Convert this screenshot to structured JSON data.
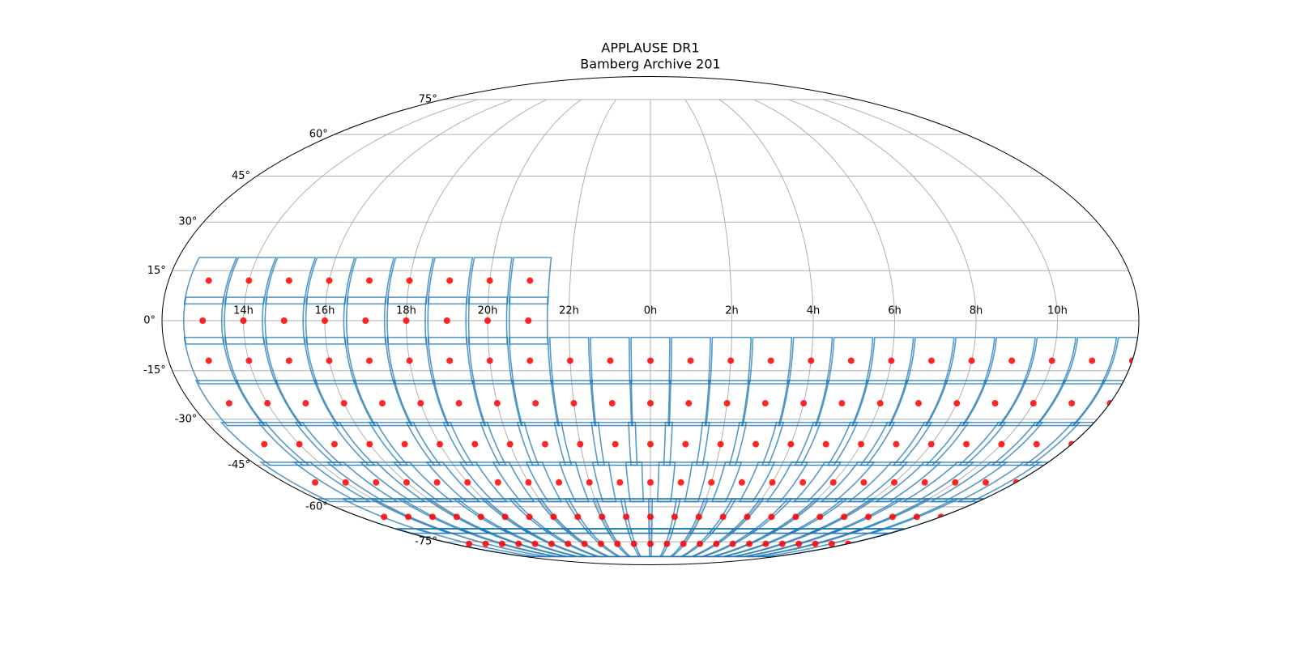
{
  "chart_data": {
    "type": "mollweide",
    "title": "APPLAUSE DR1",
    "subtitle": "Bamberg Archive 201",
    "grid": true,
    "footprint_color": "#1f77b4",
    "center_color": "#ff0000",
    "plate_size": 14,
    "xticks": [
      {
        "value": 14,
        "label": "14h"
      },
      {
        "value": 16,
        "label": "16h"
      },
      {
        "value": 18,
        "label": "18h"
      },
      {
        "value": 20,
        "label": "20h"
      },
      {
        "value": 22,
        "label": "22h"
      },
      {
        "value": 0,
        "label": "0h"
      },
      {
        "value": 2,
        "label": "2h"
      },
      {
        "value": 4,
        "label": "4h"
      },
      {
        "value": 6,
        "label": "6h"
      },
      {
        "value": 8,
        "label": "8h"
      },
      {
        "value": 10,
        "label": "10h"
      }
    ],
    "yticks": [
      {
        "value": -75,
        "label": "-75°"
      },
      {
        "value": -60,
        "label": "-60°"
      },
      {
        "value": -45,
        "label": "-45°"
      },
      {
        "value": -30,
        "label": "-30°"
      },
      {
        "value": -15,
        "label": "-15°"
      },
      {
        "value": 0,
        "label": "0°"
      },
      {
        "value": 15,
        "label": "15°"
      },
      {
        "value": 30,
        "label": "30°"
      },
      {
        "value": 45,
        "label": "45°"
      },
      {
        "value": 60,
        "label": "60°"
      },
      {
        "value": 75,
        "label": "75°"
      }
    ],
    "plates": [
      {
        "dec": 12,
        "ra": [
          13,
          14,
          15,
          16,
          17,
          18,
          19,
          20,
          21
        ]
      },
      {
        "dec": 0,
        "ra": [
          13,
          14,
          15,
          16,
          17,
          18,
          19,
          20,
          21
        ]
      },
      {
        "dec": -12,
        "ra": [
          0,
          1,
          2,
          3,
          4,
          5,
          6,
          7,
          8,
          9,
          10,
          11,
          12,
          13,
          14,
          15,
          16,
          17,
          18,
          19,
          20,
          21,
          22,
          23
        ]
      },
      {
        "dec": -25,
        "ra": [
          0,
          1,
          2,
          3,
          4,
          5,
          6,
          7,
          8,
          9,
          10,
          11,
          12,
          13,
          14,
          15,
          16,
          17,
          18,
          19,
          20,
          21,
          22,
          23
        ]
      },
      {
        "dec": -38,
        "ra": [
          0,
          1,
          2,
          3,
          4,
          5,
          6,
          7,
          8,
          9,
          10,
          11,
          12,
          13,
          14,
          15,
          16,
          17,
          18,
          19,
          20,
          21,
          22,
          23
        ]
      },
      {
        "dec": -51,
        "ra": [
          0,
          1,
          2,
          3,
          4,
          5,
          6,
          7,
          8,
          9,
          10,
          11,
          12,
          13,
          14,
          15,
          16,
          17,
          18,
          19,
          20,
          21,
          22,
          23
        ]
      },
      {
        "dec": -64,
        "ra": [
          0,
          1,
          2,
          3,
          4,
          5,
          6,
          7,
          8,
          9,
          10,
          11,
          12,
          13,
          14,
          15,
          16,
          17,
          18,
          19,
          20,
          21,
          22,
          23
        ]
      },
      {
        "dec": -76,
        "ra": [
          0,
          1,
          2,
          3,
          4,
          5,
          6,
          7,
          8,
          9,
          10,
          11,
          12,
          13,
          14,
          15,
          16,
          17,
          18,
          19,
          20,
          21,
          22,
          23
        ]
      }
    ]
  }
}
